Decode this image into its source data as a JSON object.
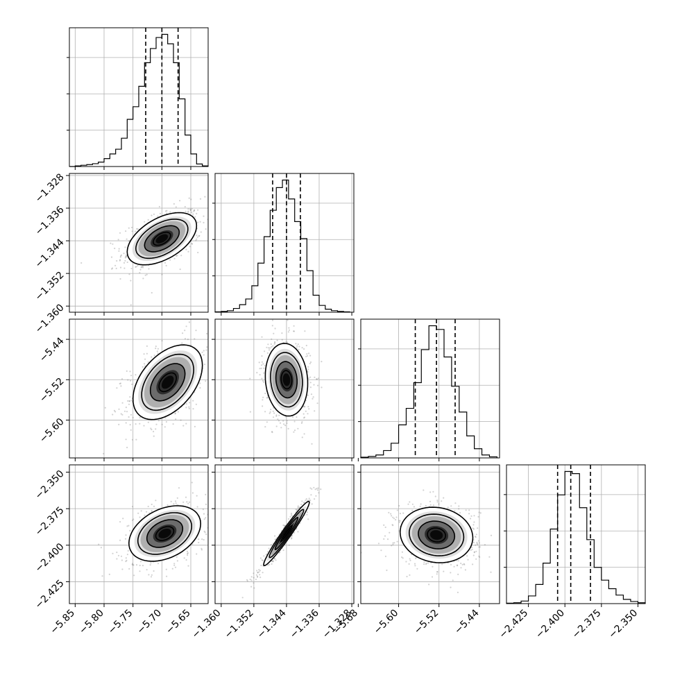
{
  "chart_data": {
    "type": "corner",
    "parameters": 4,
    "grid": true,
    "axes": [
      {
        "ticks": [
          -5.85,
          -5.8,
          -5.75,
          -5.7,
          -5.65
        ],
        "labels": [
          "−5.85",
          "−5.80",
          "−5.75",
          "−5.70",
          "−5.65"
        ],
        "range": [
          -5.86,
          -5.62
        ]
      },
      {
        "ticks": [
          -1.36,
          -1.352,
          -1.344,
          -1.336,
          -1.328
        ],
        "labels": [
          "−1.360",
          "−1.352",
          "−1.344",
          "−1.336",
          "−1.328"
        ],
        "range": [
          -1.3615,
          -1.3275
        ]
      },
      {
        "ticks": [
          -5.68,
          -5.6,
          -5.52,
          -5.44
        ],
        "labels": [
          "−5.68",
          "−5.60",
          "−5.52",
          "−5.44"
        ],
        "range": [
          -5.675,
          -5.4
        ]
      },
      {
        "ticks": [
          -2.425,
          -2.4,
          -2.375,
          -2.35
        ],
        "labels": [
          "−2.425",
          "−2.400",
          "−2.375",
          "−2.350"
        ],
        "range": [
          -2.44,
          -2.345
        ]
      }
    ],
    "marginals": [
      {
        "param": 0,
        "quantiles": [
          -5.728,
          -5.7,
          -5.672
        ],
        "bin_edges": [
          -5.86,
          -5.85,
          -5.84,
          -5.83,
          -5.82,
          -5.81,
          -5.8,
          -5.79,
          -5.78,
          -5.77,
          -5.76,
          -5.75,
          -5.74,
          -5.73,
          -5.72,
          -5.71,
          -5.7,
          -5.69,
          -5.68,
          -5.67,
          -5.66,
          -5.65,
          -5.64,
          -5.63,
          -5.62
        ],
        "counts": [
          0,
          2,
          4,
          6,
          9,
          14,
          25,
          40,
          55,
          90,
          150,
          190,
          255,
          330,
          375,
          410,
          420,
          390,
          330,
          215,
          100,
          40,
          8,
          2
        ]
      },
      {
        "param": 1,
        "quantiles": [
          -1.3474,
          -1.344,
          -1.3406
        ],
        "bin_edges": [
          -1.3615,
          -1.36,
          -1.3585,
          -1.357,
          -1.3555,
          -1.354,
          -1.3525,
          -1.351,
          -1.3495,
          -1.348,
          -1.3465,
          -1.345,
          -1.3435,
          -1.342,
          -1.3405,
          -1.339,
          -1.3375,
          -1.336,
          -1.3345,
          -1.333,
          -1.3315,
          -1.33,
          -1.3285
        ],
        "counts": [
          1,
          2,
          4,
          10,
          20,
          35,
          70,
          130,
          200,
          270,
          330,
          350,
          300,
          240,
          195,
          110,
          45,
          18,
          8,
          4,
          2,
          1
        ]
      },
      {
        "param": 2,
        "quantiles": [
          -5.567,
          -5.525,
          -5.488
        ],
        "bin_edges": [
          -5.675,
          -5.66,
          -5.645,
          -5.63,
          -5.615,
          -5.6,
          -5.585,
          -5.57,
          -5.555,
          -5.54,
          -5.525,
          -5.51,
          -5.495,
          -5.48,
          -5.465,
          -5.45,
          -5.435,
          -5.42,
          -5.405
        ],
        "counts": [
          2,
          4,
          8,
          20,
          40,
          90,
          135,
          205,
          295,
          360,
          350,
          275,
          195,
          125,
          60,
          25,
          8,
          3
        ]
      },
      {
        "param": 3,
        "quantiles": [
          -2.405,
          -2.396,
          -2.3825
        ],
        "bin_edges": [
          -2.44,
          -2.435,
          -2.43,
          -2.425,
          -2.42,
          -2.415,
          -2.41,
          -2.405,
          -2.4,
          -2.395,
          -2.39,
          -2.385,
          -2.38,
          -2.375,
          -2.37,
          -2.365,
          -2.36,
          -2.355,
          -2.35,
          -2.345
        ],
        "counts": [
          1,
          2,
          6,
          18,
          45,
          95,
          175,
          255,
          310,
          305,
          225,
          150,
          85,
          55,
          35,
          20,
          10,
          5,
          2
        ]
      }
    ],
    "pairs": [
      {
        "x": 0,
        "y": 1,
        "center": [
          -5.7,
          -1.3435
        ],
        "sd": [
          0.03,
          0.0032
        ],
        "rho": 0.5
      },
      {
        "x": 0,
        "y": 2,
        "center": [
          -5.69,
          -5.525
        ],
        "sd": [
          0.03,
          0.037
        ],
        "rho": 0.45
      },
      {
        "x": 1,
        "y": 2,
        "center": [
          -1.344,
          -5.52
        ],
        "sd": [
          0.0026,
          0.036
        ],
        "rho": -0.1
      },
      {
        "x": 0,
        "y": 3,
        "center": [
          -5.695,
          -2.392
        ],
        "sd": [
          0.031,
          0.0095
        ],
        "rho": 0.35
      },
      {
        "x": 1,
        "y": 3,
        "center": [
          -1.344,
          -2.392
        ],
        "sd": [
          0.0028,
          0.011
        ],
        "rho": 0.97
      },
      {
        "x": 2,
        "y": 3,
        "center": [
          -5.525,
          -2.393
        ],
        "sd": [
          0.036,
          0.0095
        ],
        "rho": -0.1
      }
    ],
    "colors": {
      "line": "#000000",
      "points": "#7f7f7f",
      "grid": "#b0b0b0",
      "density": "#000000"
    }
  }
}
